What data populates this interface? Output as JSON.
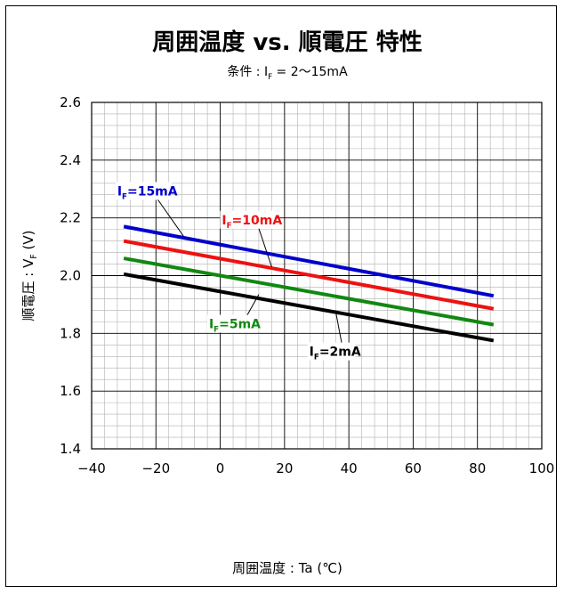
{
  "chart_data": {
    "type": "line",
    "title": "周囲温度 vs. 順電圧 特性",
    "subtitle": "条件 : I_F = 2〜15mA",
    "xlabel": "周囲温度 : Ta (℃)",
    "ylabel": "順電圧 : V_F (V)",
    "xlim": [
      -40,
      100
    ],
    "ylim": [
      1.4,
      2.6
    ],
    "x_ticks": [
      -40,
      -20,
      0,
      20,
      40,
      60,
      80,
      100
    ],
    "y_ticks": [
      1.4,
      1.6,
      1.8,
      2.0,
      2.2,
      2.4,
      2.6
    ],
    "x_tick_labels": [
      "−40",
      "−20",
      "0",
      "20",
      "40",
      "60",
      "80",
      "100"
    ],
    "y_tick_labels": [
      "1.4",
      "1.6",
      "1.8",
      "2.0",
      "2.2",
      "2.4",
      "2.6"
    ],
    "grid": true,
    "series": [
      {
        "name": "I_F=15mA",
        "color": "#0000cc",
        "x": [
          -30,
          85
        ],
        "y": [
          2.17,
          1.93
        ]
      },
      {
        "name": "I_F=10mA",
        "color": "#ee1111",
        "x": [
          -30,
          85
        ],
        "y": [
          2.12,
          1.885
        ]
      },
      {
        "name": "I_F=5mA",
        "color": "#118811",
        "x": [
          -30,
          85
        ],
        "y": [
          2.06,
          1.83
        ]
      },
      {
        "name": "I_F=2mA",
        "color": "#000000",
        "x": [
          -30,
          85
        ],
        "y": [
          2.005,
          1.775
        ]
      }
    ],
    "annotations": [
      {
        "series": "I_F=15mA",
        "label_main": "I",
        "label_sub": "F",
        "label_rest": "=15mA",
        "point": [
          -11,
          2.13
        ]
      },
      {
        "series": "I_F=10mA",
        "label_main": "I",
        "label_sub": "F",
        "label_rest": "=10mA",
        "point": [
          16,
          2.03
        ]
      },
      {
        "series": "I_F=5mA",
        "label_main": "I",
        "label_sub": "F",
        "label_rest": "=5mA",
        "point": [
          12,
          1.935
        ]
      },
      {
        "series": "I_F=2mA",
        "label_main": "I",
        "label_sub": "F",
        "label_rest": "=2mA",
        "point": [
          36,
          1.87
        ]
      }
    ]
  }
}
